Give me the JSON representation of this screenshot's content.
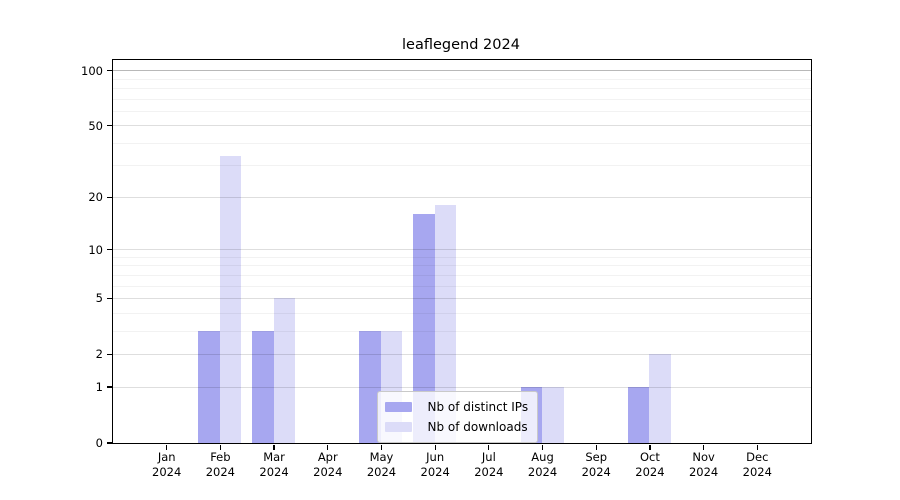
{
  "chart_data": {
    "type": "bar",
    "title": "leaflegend 2024",
    "categories": [
      "Jan",
      "Feb",
      "Mar",
      "Apr",
      "May",
      "Jun",
      "Jul",
      "Aug",
      "Sep",
      "Oct",
      "Nov",
      "Dec"
    ],
    "tick_year": "2024",
    "series": [
      {
        "name": "Nb of distinct IPs",
        "color": "#a7a7f0",
        "values": [
          0,
          3,
          3,
          0,
          3,
          16,
          0,
          1,
          0,
          1,
          0,
          0
        ]
      },
      {
        "name": "Nb of downloads",
        "color": "#dcdcf8",
        "values": [
          0,
          34,
          5,
          0,
          3,
          18,
          0,
          1,
          0,
          2,
          0,
          0
        ]
      }
    ],
    "yscale": "log1p",
    "ylim": [
      0,
      115
    ],
    "y_major_ticks": [
      0,
      1,
      2,
      5,
      10,
      20,
      50,
      100
    ],
    "y_minor_gridlines": [
      3,
      4,
      6,
      7,
      8,
      9,
      30,
      40,
      60,
      70,
      80,
      90
    ],
    "xlabel": "",
    "ylabel": "",
    "grid": "on",
    "legend_position": "inside-bottom-center"
  },
  "colors": {
    "background": "#ffffff",
    "bar_distinct_ips": "#a7a7f0",
    "bar_downloads": "#dcdcf8",
    "grid_major": "rgba(0,0,0,0.13)",
    "grid_minor": "rgba(0,0,0,0.05)",
    "grid_top_line": "rgba(0,0,0,0.28)",
    "spine": "#000000",
    "legend_border": "#c9c9c9"
  }
}
